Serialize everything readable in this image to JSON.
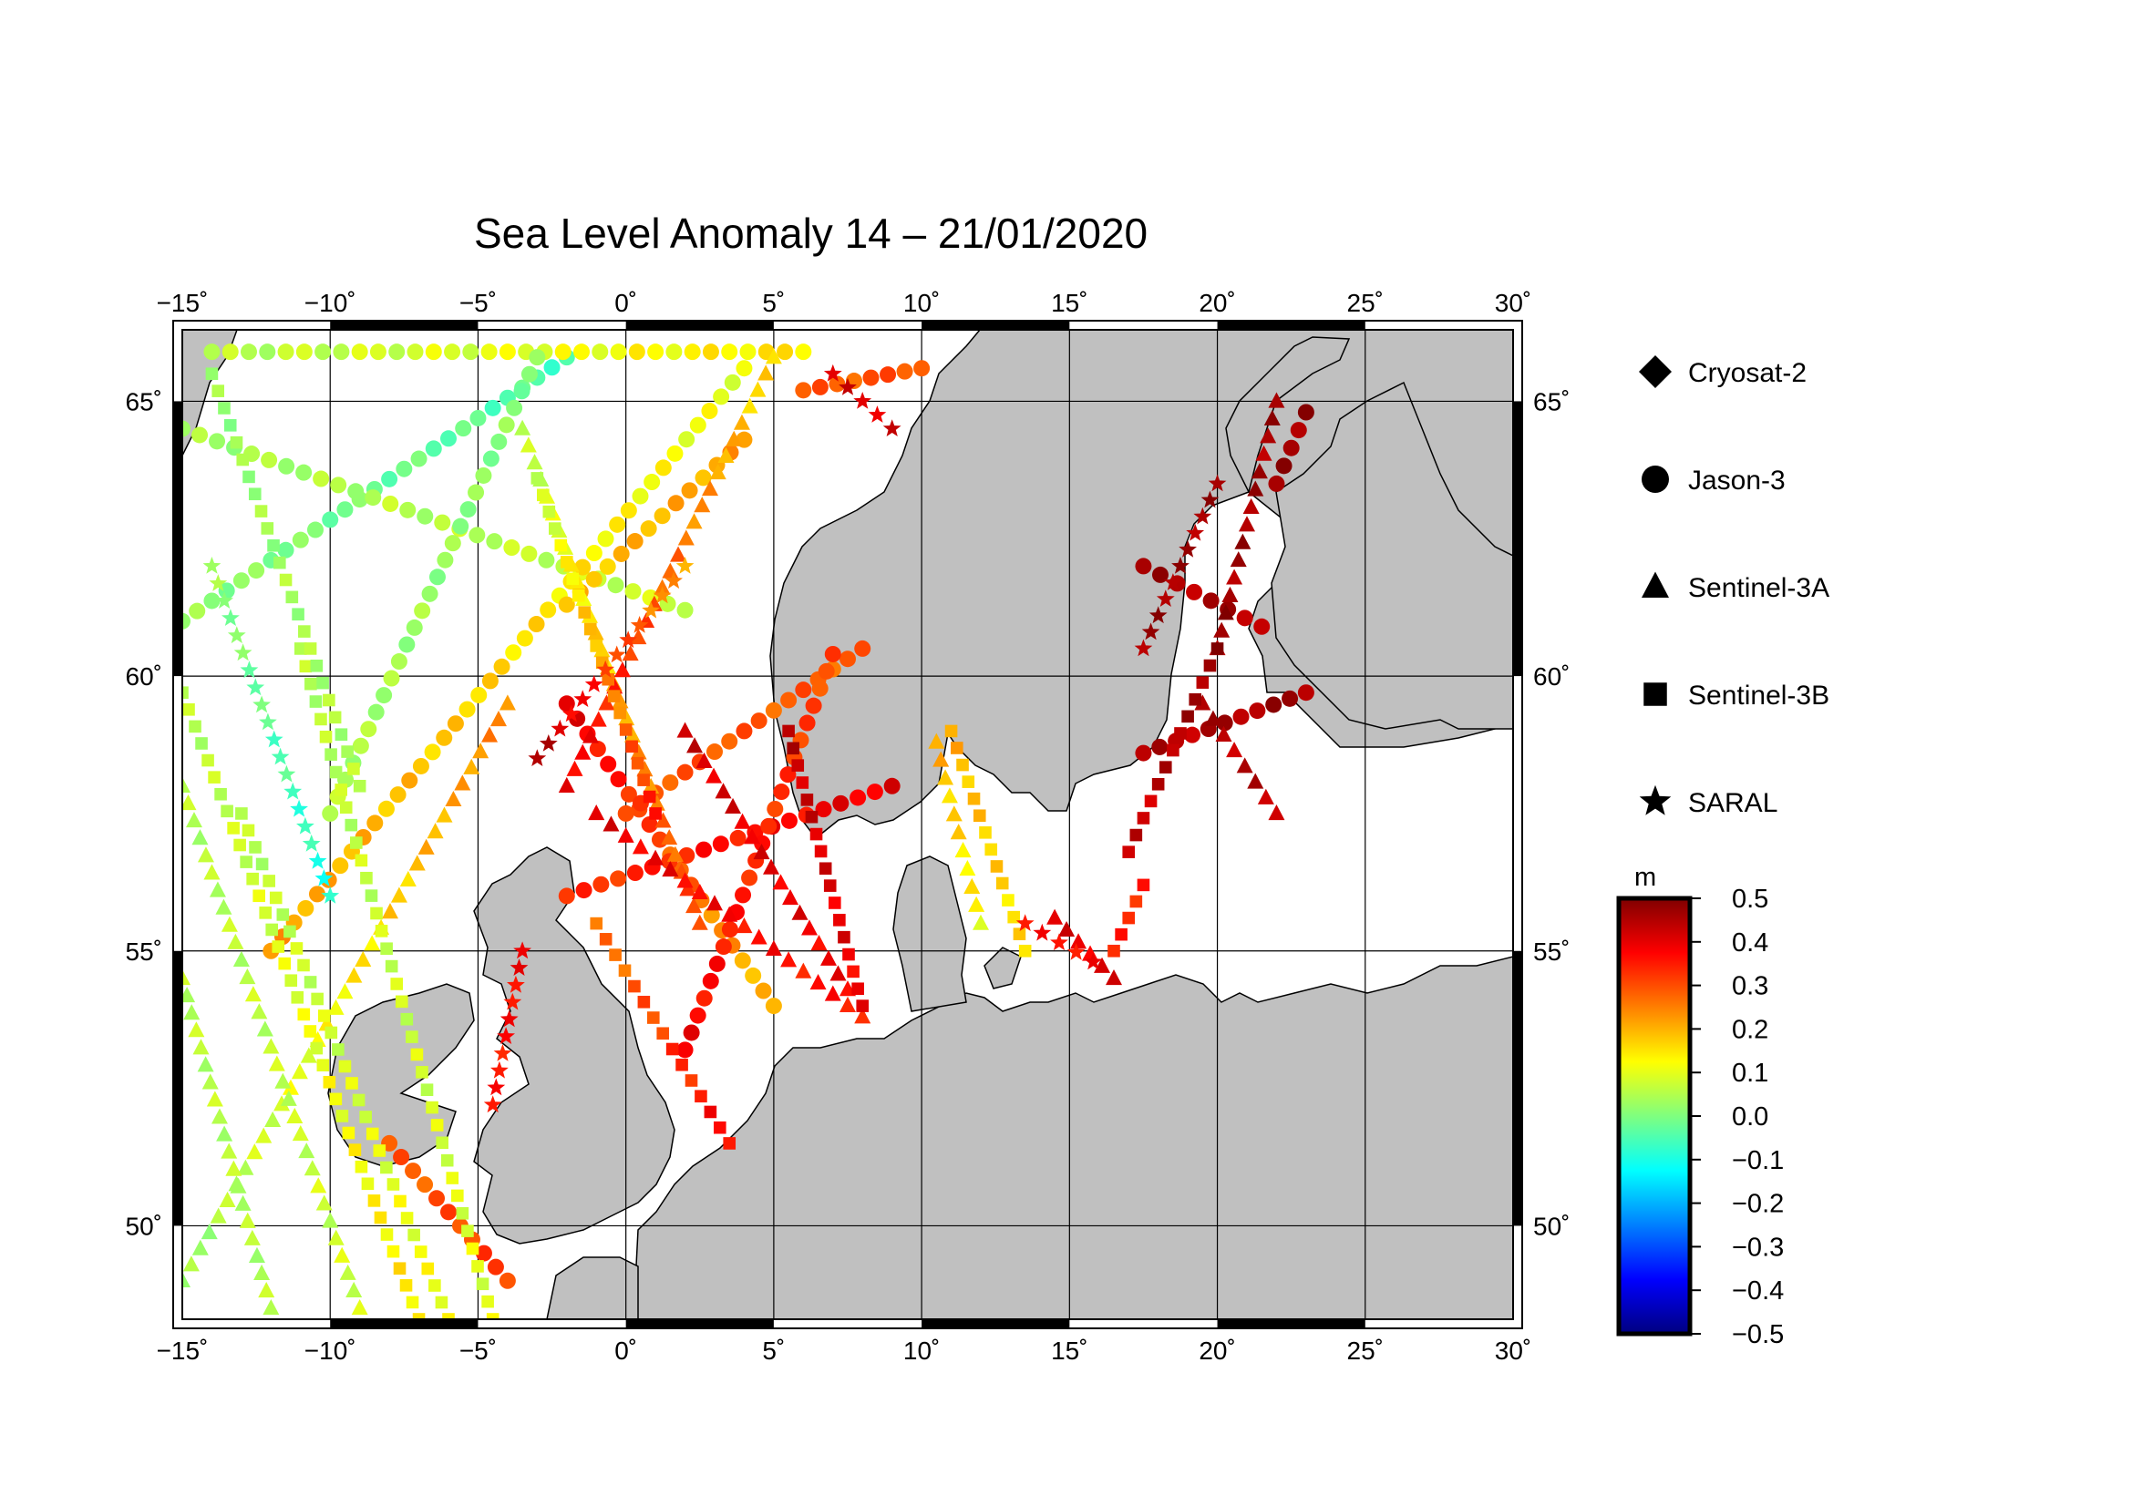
{
  "title": "Sea Level Anomaly 14 – 21/01/2020",
  "map": {
    "lon_range": [
      -15,
      30
    ],
    "lat_range": [
      48.3,
      66.3
    ],
    "lon_ticks": [
      -15,
      -10,
      -5,
      0,
      5,
      10,
      15,
      20,
      25,
      30
    ],
    "lat_ticks": [
      50,
      55,
      60,
      65
    ],
    "lon_tick_labels": [
      "−15˚",
      "−10˚",
      "−5˚",
      "0˚",
      "5˚",
      "10˚",
      "15˚",
      "20˚",
      "25˚",
      "30˚"
    ],
    "lat_tick_labels": [
      "50˚",
      "55˚",
      "60˚",
      "65˚"
    ],
    "land_color": "#c0c0c0",
    "sea_color": "#ffffff",
    "grid": true
  },
  "legend": {
    "items": [
      {
        "label": "Cryosat-2",
        "symbol": "diamond"
      },
      {
        "label": "Jason-3",
        "symbol": "circle"
      },
      {
        "label": "Sentinel-3A",
        "symbol": "triangle"
      },
      {
        "label": "Sentinel-3B",
        "symbol": "square"
      },
      {
        "label": "SARAL",
        "symbol": "star"
      }
    ]
  },
  "colorbar": {
    "unit": "m",
    "min": -0.5,
    "max": 0.5,
    "tick_labels": [
      "0.5",
      "0.4",
      "0.3",
      "0.2",
      "0.1",
      "0.0",
      "−0.1",
      "−0.2",
      "−0.3",
      "−0.4",
      "−0.5"
    ],
    "colors": [
      "#00007f",
      "#0000ff",
      "#007fff",
      "#00ffff",
      "#7fff7f",
      "#ffff00",
      "#ff7f00",
      "#ff0000",
      "#7f0000"
    ]
  },
  "tracks": [
    {
      "symbol": "circle",
      "from": [
        -15,
        61
      ],
      "to": [
        -2,
        65.8
      ],
      "v0": 0.02,
      "v1": -0.05
    },
    {
      "symbol": "circle",
      "from": [
        -15,
        64.5
      ],
      "to": [
        2,
        61.2
      ],
      "v0": 0.03,
      "v1": 0.08
    },
    {
      "symbol": "circle",
      "from": [
        -14,
        65.9
      ],
      "to": [
        6,
        65.9
      ],
      "v0": 0.05,
      "v1": 0.15
    },
    {
      "symbol": "circle",
      "from": [
        -10,
        57.5
      ],
      "to": [
        -3,
        65.8
      ],
      "v0": 0.05,
      "v1": 0.0
    },
    {
      "symbol": "circle",
      "from": [
        -12,
        55
      ],
      "to": [
        4,
        65.6
      ],
      "v0": 0.22,
      "v1": 0.1
    },
    {
      "symbol": "circle",
      "from": [
        -8,
        51.5
      ],
      "to": [
        -4,
        49
      ],
      "v0": 0.28,
      "v1": 0.32
    },
    {
      "symbol": "circle",
      "from": [
        -2,
        59.5
      ],
      "to": [
        5,
        54
      ],
      "v0": 0.4,
      "v1": 0.18
    },
    {
      "symbol": "circle",
      "from": [
        0,
        57.5
      ],
      "to": [
        8,
        60.5
      ],
      "v0": 0.3,
      "v1": 0.28
    },
    {
      "symbol": "circle",
      "from": [
        -2,
        56
      ],
      "to": [
        9,
        58
      ],
      "v0": 0.32,
      "v1": 0.4
    },
    {
      "symbol": "circle",
      "from": [
        2,
        53.2
      ],
      "to": [
        7,
        60.4
      ],
      "v0": 0.38,
      "v1": 0.3
    },
    {
      "symbol": "circle",
      "from": [
        -2,
        61.3
      ],
      "to": [
        4,
        64.3
      ],
      "v0": 0.18,
      "v1": 0.22
    },
    {
      "symbol": "circle",
      "from": [
        6,
        65.2
      ],
      "to": [
        10,
        65.6
      ],
      "v0": 0.28,
      "v1": 0.3
    },
    {
      "symbol": "circle",
      "from": [
        17.5,
        62
      ],
      "to": [
        21.5,
        60.9
      ],
      "v0": 0.46,
      "v1": 0.45
    },
    {
      "symbol": "circle",
      "from": [
        17.5,
        58.6
      ],
      "to": [
        23,
        59.7
      ],
      "v0": 0.44,
      "v1": 0.47
    },
    {
      "symbol": "circle",
      "from": [
        22,
        63.5
      ],
      "to": [
        23,
        64.8
      ],
      "v0": 0.46,
      "v1": 0.48
    },
    {
      "symbol": "triangle",
      "from": [
        -15,
        49
      ],
      "to": [
        -4,
        59.5
      ],
      "v0": 0.02,
      "v1": 0.25
    },
    {
      "symbol": "triangle",
      "from": [
        -15,
        58
      ],
      "to": [
        -9,
        48.5
      ],
      "v0": 0.05,
      "v1": 0.08
    },
    {
      "symbol": "triangle",
      "from": [
        -12,
        48.5
      ],
      "to": [
        -15,
        54.5
      ],
      "v0": 0.05,
      "v1": 0.06
    },
    {
      "symbol": "triangle",
      "from": [
        -3.5,
        64.5
      ],
      "to": [
        2.5,
        55.5
      ],
      "v0": 0.05,
      "v1": 0.32
    },
    {
      "symbol": "triangle",
      "from": [
        -1,
        57.5
      ],
      "to": [
        8,
        53.8
      ],
      "v0": 0.4,
      "v1": 0.35
    },
    {
      "symbol": "triangle",
      "from": [
        5,
        65.8
      ],
      "to": [
        -2,
        58
      ],
      "v0": 0.15,
      "v1": 0.4
    },
    {
      "symbol": "triangle",
      "from": [
        2,
        59
      ],
      "to": [
        7.5,
        54.3
      ],
      "v0": 0.42,
      "v1": 0.38
    },
    {
      "symbol": "triangle",
      "from": [
        22,
        65
      ],
      "to": [
        20,
        60.5
      ],
      "v0": 0.46,
      "v1": 0.47
    },
    {
      "symbol": "triangle",
      "from": [
        19.5,
        59.5
      ],
      "to": [
        22,
        57.5
      ],
      "v0": 0.45,
      "v1": 0.44
    },
    {
      "symbol": "triangle",
      "from": [
        14.5,
        55.6
      ],
      "to": [
        16.5,
        54.5
      ],
      "v0": 0.4,
      "v1": 0.4
    },
    {
      "symbol": "triangle",
      "from": [
        10.5,
        58.8
      ],
      "to": [
        12,
        55.5
      ],
      "v0": 0.2,
      "v1": 0.12
    },
    {
      "symbol": "square",
      "from": [
        -15,
        59.7
      ],
      "to": [
        -7,
        48.3
      ],
      "v0": 0.05,
      "v1": 0.15
    },
    {
      "symbol": "square",
      "from": [
        -13,
        57.5
      ],
      "to": [
        -6,
        48.3
      ],
      "v0": 0.05,
      "v1": 0.12
    },
    {
      "symbol": "square",
      "from": [
        -11,
        60.5
      ],
      "to": [
        -4.5,
        48.3
      ],
      "v0": 0.05,
      "v1": 0.1
    },
    {
      "symbol": "square",
      "from": [
        -14,
        65.5
      ],
      "to": [
        -9,
        58
      ],
      "v0": 0.02,
      "v1": 0.05
    },
    {
      "symbol": "square",
      "from": [
        -3,
        63.6
      ],
      "to": [
        1,
        57.5
      ],
      "v0": 0.05,
      "v1": 0.35
    },
    {
      "symbol": "square",
      "from": [
        -1,
        55.5
      ],
      "to": [
        3.5,
        51.5
      ],
      "v0": 0.25,
      "v1": 0.38
    },
    {
      "symbol": "square",
      "from": [
        5.5,
        59
      ],
      "to": [
        8,
        54
      ],
      "v0": 0.44,
      "v1": 0.38
    },
    {
      "symbol": "square",
      "from": [
        17,
        56.8
      ],
      "to": [
        20,
        60.5
      ],
      "v0": 0.42,
      "v1": 0.48
    },
    {
      "symbol": "square",
      "from": [
        16.5,
        55
      ],
      "to": [
        17.5,
        56.2
      ],
      "v0": 0.33,
      "v1": 0.35
    },
    {
      "symbol": "square",
      "from": [
        11,
        59
      ],
      "to": [
        13.5,
        55
      ],
      "v0": 0.2,
      "v1": 0.15
    },
    {
      "symbol": "star",
      "from": [
        -14,
        62
      ],
      "to": [
        -10,
        56
      ],
      "v0": 0.03,
      "v1": -0.1
    },
    {
      "symbol": "star",
      "from": [
        -3,
        58.5
      ],
      "to": [
        2,
        62
      ],
      "v0": 0.45,
      "v1": 0.2
    },
    {
      "symbol": "star",
      "from": [
        20,
        63.5
      ],
      "to": [
        17.5,
        60.5
      ],
      "v0": 0.46,
      "v1": 0.47
    },
    {
      "symbol": "star",
      "from": [
        13.5,
        55.5
      ],
      "to": [
        15.8,
        54.8
      ],
      "v0": 0.35,
      "v1": 0.38
    },
    {
      "symbol": "star",
      "from": [
        -4.5,
        52.2
      ],
      "to": [
        -3.5,
        55
      ],
      "v0": 0.35,
      "v1": 0.38
    },
    {
      "symbol": "star",
      "from": [
        7,
        65.5
      ],
      "to": [
        9,
        64.5
      ],
      "v0": 0.4,
      "v1": 0.42
    }
  ]
}
